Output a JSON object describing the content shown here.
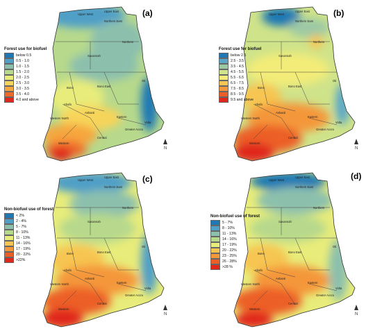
{
  "panels": [
    {
      "id": "a",
      "label": "(a)",
      "legend": {
        "title": "Forest use for biofuel",
        "items": [
          {
            "label": "below 0.5",
            "color": "#1f78b4"
          },
          {
            "label": "0.5 - 1.0",
            "color": "#4f9fc7"
          },
          {
            "label": "1.0 - 1.5",
            "color": "#8cc0ad"
          },
          {
            "label": "1.5 - 2.0",
            "color": "#b7d98c"
          },
          {
            "label": "2.0 - 2.5",
            "color": "#e8ec7a"
          },
          {
            "label": "2.5 - 3.0",
            "color": "#f7d45a"
          },
          {
            "label": "3.0 - 3.5",
            "color": "#f6a63e"
          },
          {
            "label": "3.5 - 4.0",
            "color": "#ee6a2a"
          },
          {
            "label": "4.0 and above",
            "color": "#e0271c"
          }
        ]
      }
    },
    {
      "id": "b",
      "label": "(b)",
      "legend": {
        "title": "Forest use for biofuel",
        "items": [
          {
            "label": "below 2.5",
            "color": "#1f78b4"
          },
          {
            "label": "2.5 - 3.5",
            "color": "#5aa6c9"
          },
          {
            "label": "3.5 - 4.5",
            "color": "#9cc9a5"
          },
          {
            "label": "4.5 - 5.5",
            "color": "#cfe38a"
          },
          {
            "label": "5.5 - 6.5",
            "color": "#f3ec78"
          },
          {
            "label": "6.5 - 7.5",
            "color": "#f7c551"
          },
          {
            "label": "7.5 - 8.5",
            "color": "#f4973a"
          },
          {
            "label": "8.5 - 9.5",
            "color": "#ec5e28"
          },
          {
            "label": "9.5 and above",
            "color": "#e0271c"
          }
        ]
      }
    },
    {
      "id": "c",
      "label": "(c)",
      "legend": {
        "title": "Non-biofuel use of forest",
        "items": [
          {
            "label": "< 2%",
            "color": "#1f78b4"
          },
          {
            "label": "2 - 4%",
            "color": "#4f9fc7"
          },
          {
            "label": "5 - 7%",
            "color": "#8cc0ad"
          },
          {
            "label": "8 - 10%",
            "color": "#b7d98c"
          },
          {
            "label": "11 - 13%",
            "color": "#e8ec7a"
          },
          {
            "label": "14 - 16%",
            "color": "#f7c551"
          },
          {
            "label": "17 - 19%",
            "color": "#f4973a"
          },
          {
            "label": "20 - 22%",
            "color": "#ec5e28"
          },
          {
            "label": ">22%",
            "color": "#e0271c"
          }
        ]
      }
    },
    {
      "id": "d",
      "label": "(d)",
      "legend": {
        "title": "Non-biofuel use of forest",
        "items": [
          {
            "label": "5 - 7%",
            "color": "#1f78b4"
          },
          {
            "label": "8 - 10%",
            "color": "#4f9fc7"
          },
          {
            "label": "11 - 13%",
            "color": "#8cc0ad"
          },
          {
            "label": "14 - 16%",
            "color": "#b7d98c"
          },
          {
            "label": "17 - 19%",
            "color": "#e8ec7a"
          },
          {
            "label": "20 - 22%",
            "color": "#f7c551"
          },
          {
            "label": "23 - 25%",
            "color": "#f4973a"
          },
          {
            "label": "26 - 28%",
            "color": "#ec5e28"
          },
          {
            "label": ">28 %",
            "color": "#e0271c"
          }
        ]
      }
    }
  ],
  "regions": [
    "Upper West",
    "Upper East",
    "Northern",
    "Northern East",
    "Savannah",
    "Bono",
    "Bono East",
    "Oti",
    "Ahafo",
    "Ashanti",
    "Eastern",
    "Volta",
    "Western North",
    "Western",
    "Central",
    "Greater Accra"
  ],
  "north_arrow": "N"
}
